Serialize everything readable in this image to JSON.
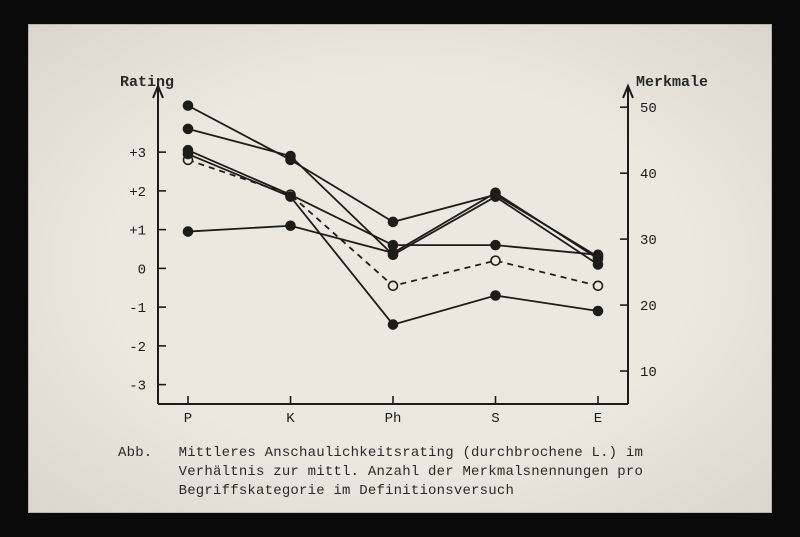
{
  "chart": {
    "type": "line",
    "background_color": "#ece8df",
    "axis_color": "#1c1c1a",
    "grid_color": "none",
    "font_family": "Courier New",
    "label_fontsize": 14,
    "tick_fontsize": 14,
    "left_axis": {
      "title": "Rating",
      "ticks": [
        -3,
        -2,
        -1,
        0,
        1,
        2,
        3
      ],
      "tick_labels": [
        "-3",
        "-2",
        "-1",
        "0",
        "+1",
        "+2",
        "+3"
      ],
      "ylim": [
        -3.5,
        4.5
      ]
    },
    "right_axis": {
      "title": "Merkmale",
      "ticks": [
        10,
        20,
        30,
        40,
        50
      ],
      "tick_labels": [
        "10",
        "20",
        "30",
        "40",
        "50"
      ],
      "ylim": [
        5,
        52
      ]
    },
    "x_axis": {
      "categories": [
        "P",
        "K",
        "Ph",
        "S",
        "E"
      ]
    },
    "series_solid_color": "#1c1c1a",
    "series_solid_width": 1.8,
    "series_dashed_dash": "6,5",
    "marker_fill_solid": "#1c1c1a",
    "marker_fill_open": "#ece8df",
    "marker_stroke": "#1c1c1a",
    "marker_radius": 4.5,
    "series": [
      {
        "name": "s1",
        "style": "solid",
        "marker": "filled",
        "values": [
          4.2,
          2.8,
          1.2,
          1.9,
          0.3
        ]
      },
      {
        "name": "s2",
        "style": "solid",
        "marker": "filled",
        "values": [
          3.6,
          2.9,
          0.35,
          1.85,
          0.1
        ]
      },
      {
        "name": "s3",
        "style": "solid",
        "marker": "filled",
        "values": [
          3.05,
          1.9,
          0.6,
          0.6,
          0.35
        ]
      },
      {
        "name": "dashed",
        "style": "dashed",
        "marker": "open",
        "values": [
          2.8,
          1.9,
          -0.45,
          0.2,
          -0.45
        ]
      },
      {
        "name": "s4",
        "style": "solid",
        "marker": "filled",
        "values": [
          2.95,
          1.85,
          -1.45,
          -0.7,
          -1.1
        ]
      },
      {
        "name": "s5",
        "style": "solid",
        "marker": "filled",
        "values": [
          0.95,
          1.1,
          0.4,
          1.95,
          0.25
        ]
      }
    ],
    "caption_label": "Abb.",
    "caption_text": "Mittleres Anschaulichkeitsrating (durchbrochene L.) im Verhältnis zur mittl. Anzahl der Merkmalsnennungen pro Begriffskategorie im Definitionsversuch"
  }
}
